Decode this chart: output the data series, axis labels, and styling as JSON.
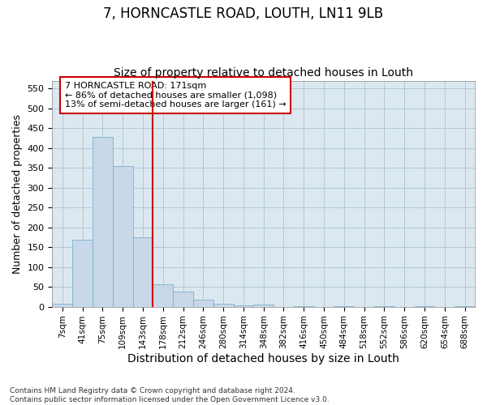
{
  "title": "7, HORNCASTLE ROAD, LOUTH, LN11 9LB",
  "subtitle": "Size of property relative to detached houses in Louth",
  "xlabel": "Distribution of detached houses by size in Louth",
  "ylabel": "Number of detached properties",
  "footnote": "Contains HM Land Registry data © Crown copyright and database right 2024.\nContains public sector information licensed under the Open Government Licence v3.0.",
  "bar_labels": [
    "7sqm",
    "41sqm",
    "75sqm",
    "109sqm",
    "143sqm",
    "178sqm",
    "212sqm",
    "246sqm",
    "280sqm",
    "314sqm",
    "348sqm",
    "382sqm",
    "416sqm",
    "450sqm",
    "484sqm",
    "518sqm",
    "552sqm",
    "586sqm",
    "620sqm",
    "654sqm",
    "688sqm"
  ],
  "bar_values": [
    8,
    168,
    428,
    355,
    175,
    57,
    38,
    18,
    8,
    3,
    5,
    0,
    2,
    0,
    2,
    0,
    1,
    0,
    1,
    0,
    2
  ],
  "bar_color": "#c8d8e8",
  "bar_edge_color": "#7ab0d0",
  "vline_x_index": 5,
  "vline_color": "#cc0000",
  "annotation_text": "7 HORNCASTLE ROAD: 171sqm\n← 86% of detached houses are smaller (1,098)\n13% of semi-detached houses are larger (161) →",
  "annotation_box_color": "#cc0000",
  "ylim": [
    0,
    570
  ],
  "yticks": [
    0,
    50,
    100,
    150,
    200,
    250,
    300,
    350,
    400,
    450,
    500,
    550
  ],
  "plot_bg_color": "#dce8f0",
  "fig_bg_color": "#ffffff",
  "grid_color": "#b0c8d8",
  "title_fontsize": 12,
  "subtitle_fontsize": 10,
  "ylabel_fontsize": 9,
  "xlabel_fontsize": 10
}
